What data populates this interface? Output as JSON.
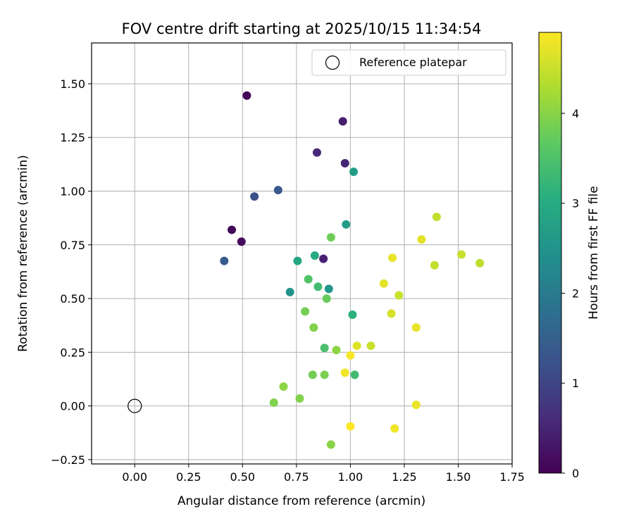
{
  "chart_data": {
    "type": "scatter",
    "title": "FOV centre drift starting at 2025/10/15 11:34:54",
    "xlabel": "Angular distance from reference (arcmin)",
    "ylabel": "Rotation from reference (arcmin)",
    "xlim": [
      -0.2,
      1.75
    ],
    "ylim": [
      -0.27,
      1.69
    ],
    "xticks": [
      0.0,
      0.25,
      0.5,
      0.75,
      1.0,
      1.25,
      1.5,
      1.75
    ],
    "xtick_labels": [
      "0.00",
      "0.25",
      "0.50",
      "0.75",
      "1.00",
      "1.25",
      "1.50",
      "1.75"
    ],
    "yticks": [
      -0.25,
      0.0,
      0.25,
      0.5,
      0.75,
      1.0,
      1.25,
      1.5
    ],
    "ytick_labels": [
      "−0.25",
      "0.00",
      "0.25",
      "0.50",
      "0.75",
      "1.00",
      "1.25",
      "1.50"
    ],
    "grid": true,
    "legend": {
      "position": "top-right",
      "label": "Reference platepar"
    },
    "reference_point": {
      "x": 0.0,
      "y": 0.0
    },
    "colorbar": {
      "label": "Hours from first FF file",
      "min": 0,
      "max": 4.9,
      "ticks": [
        0,
        1,
        2,
        3,
        4
      ],
      "tick_labels": [
        "0",
        "1",
        "2",
        "3",
        "4"
      ],
      "colormap": "viridis"
    },
    "points": [
      {
        "x": 0.52,
        "y": 1.445,
        "c": 0.05
      },
      {
        "x": 0.965,
        "y": 1.325,
        "c": 0.4
      },
      {
        "x": 0.845,
        "y": 1.18,
        "c": 0.55
      },
      {
        "x": 0.975,
        "y": 1.13,
        "c": 0.5
      },
      {
        "x": 0.45,
        "y": 0.82,
        "c": 0.1
      },
      {
        "x": 0.495,
        "y": 0.765,
        "c": 0.15
      },
      {
        "x": 0.875,
        "y": 0.685,
        "c": 0.45
      },
      {
        "x": 0.555,
        "y": 0.975,
        "c": 1.2
      },
      {
        "x": 0.665,
        "y": 1.005,
        "c": 1.35
      },
      {
        "x": 0.415,
        "y": 0.675,
        "c": 1.4
      },
      {
        "x": 1.015,
        "y": 1.09,
        "c": 2.7
      },
      {
        "x": 0.98,
        "y": 0.845,
        "c": 2.7
      },
      {
        "x": 0.72,
        "y": 0.53,
        "c": 2.5
      },
      {
        "x": 0.9,
        "y": 0.545,
        "c": 2.55
      },
      {
        "x": 0.755,
        "y": 0.675,
        "c": 2.9
      },
      {
        "x": 0.835,
        "y": 0.7,
        "c": 2.95
      },
      {
        "x": 1.01,
        "y": 0.425,
        "c": 3.1
      },
      {
        "x": 1.02,
        "y": 0.145,
        "c": 3.35
      },
      {
        "x": 0.805,
        "y": 0.59,
        "c": 3.55
      },
      {
        "x": 0.85,
        "y": 0.555,
        "c": 3.35
      },
      {
        "x": 0.88,
        "y": 0.27,
        "c": 3.45
      },
      {
        "x": 0.91,
        "y": 0.785,
        "c": 3.8
      },
      {
        "x": 0.89,
        "y": 0.5,
        "c": 3.75
      },
      {
        "x": 0.79,
        "y": 0.44,
        "c": 3.85
      },
      {
        "x": 0.83,
        "y": 0.365,
        "c": 3.95
      },
      {
        "x": 0.825,
        "y": 0.145,
        "c": 3.85
      },
      {
        "x": 0.88,
        "y": 0.145,
        "c": 3.9
      },
      {
        "x": 0.935,
        "y": 0.26,
        "c": 4.05
      },
      {
        "x": 0.69,
        "y": 0.09,
        "c": 4.05
      },
      {
        "x": 0.765,
        "y": 0.035,
        "c": 3.95
      },
      {
        "x": 0.645,
        "y": 0.015,
        "c": 3.95
      },
      {
        "x": 0.91,
        "y": -0.18,
        "c": 4.0
      },
      {
        "x": 1.4,
        "y": 0.88,
        "c": 4.45
      },
      {
        "x": 1.33,
        "y": 0.775,
        "c": 4.7
      },
      {
        "x": 1.195,
        "y": 0.69,
        "c": 4.75
      },
      {
        "x": 1.39,
        "y": 0.655,
        "c": 4.45
      },
      {
        "x": 1.515,
        "y": 0.705,
        "c": 4.5
      },
      {
        "x": 1.6,
        "y": 0.665,
        "c": 4.4
      },
      {
        "x": 1.155,
        "y": 0.57,
        "c": 4.7
      },
      {
        "x": 1.225,
        "y": 0.515,
        "c": 4.5
      },
      {
        "x": 1.19,
        "y": 0.43,
        "c": 4.6
      },
      {
        "x": 1.305,
        "y": 0.365,
        "c": 4.75
      },
      {
        "x": 1.03,
        "y": 0.28,
        "c": 4.65
      },
      {
        "x": 1.095,
        "y": 0.28,
        "c": 4.5
      },
      {
        "x": 1.0,
        "y": 0.235,
        "c": 4.85
      },
      {
        "x": 0.975,
        "y": 0.155,
        "c": 4.8
      },
      {
        "x": 1.305,
        "y": 0.005,
        "c": 4.75
      },
      {
        "x": 1.0,
        "y": -0.095,
        "c": 4.9
      },
      {
        "x": 1.205,
        "y": -0.105,
        "c": 4.8
      }
    ]
  }
}
